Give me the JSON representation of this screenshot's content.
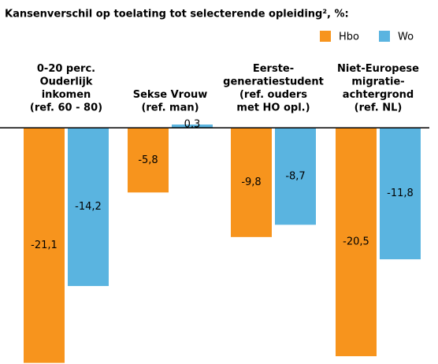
{
  "chart_data": {
    "type": "bar",
    "title": "Kansenverschil op toelating tot selecterende opleiding², %:",
    "categories": [
      [
        "0-20 perc.",
        "Ouderlijk",
        "inkomen",
        "(ref. 60 - 80)"
      ],
      [
        "Sekse Vrouw",
        "(ref. man)"
      ],
      [
        "Eerste-",
        "generatiestudent",
        "(ref. ouders",
        "met HO opl.)"
      ],
      [
        "Niet-Europese",
        "migratie-",
        "achtergrond",
        "(ref. NL)"
      ]
    ],
    "series": [
      {
        "name": "Hbo",
        "color": "#f7941d",
        "values": [
          -21.1,
          -5.8,
          -9.8,
          -20.5
        ],
        "value_labels": [
          "-21,1",
          "-5,8",
          "-9,8",
          "-20,5"
        ]
      },
      {
        "name": "Wo",
        "color": "#5ab4e0",
        "values": [
          -14.2,
          0.3,
          -8.7,
          -11.8
        ],
        "value_labels": [
          "-14,2",
          "0,3",
          "-8,7",
          "-11,8"
        ]
      }
    ],
    "ylim": [
      -21.2,
      0.8
    ],
    "legend": "top-right"
  }
}
